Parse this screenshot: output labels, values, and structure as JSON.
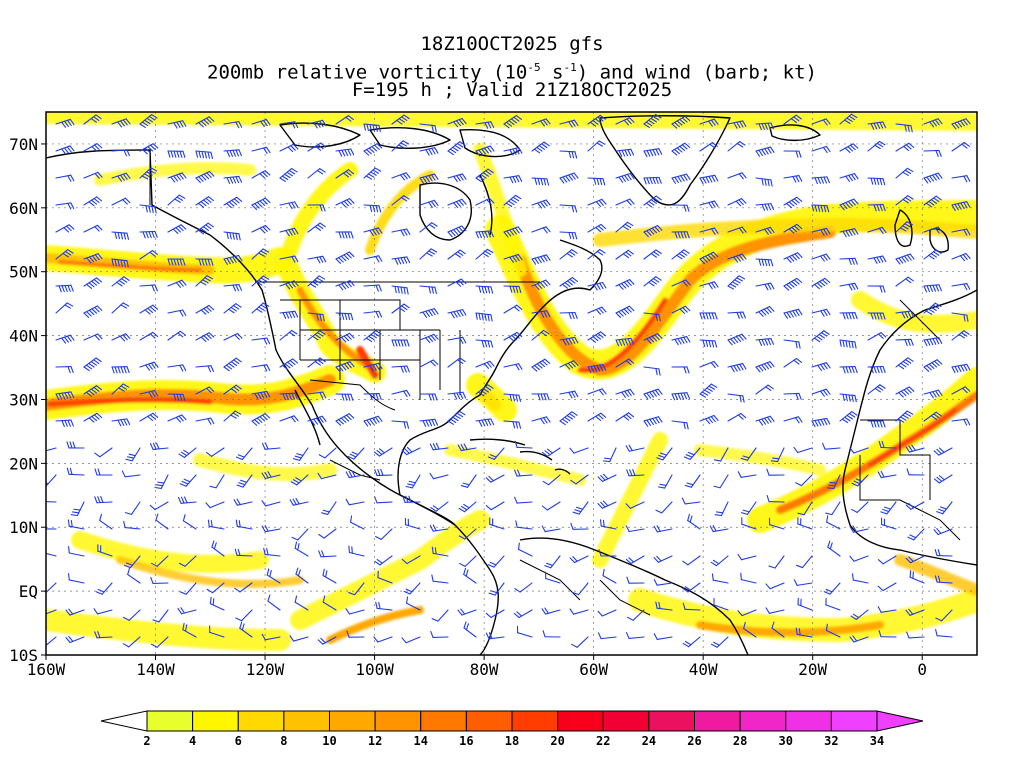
{
  "header": {
    "line1": "18Z10OCT2025 gfs",
    "line2_pre": "200mb relative vorticity (10",
    "line2_exp1": "-5",
    "line2_mid": " s",
    "line2_exp2": "-1",
    "line2_post": ") and wind (barb; kt)",
    "line3": "F=195 h ; Valid 21Z18OCT2025"
  },
  "axes": {
    "lat_labels": [
      "70N",
      "60N",
      "50N",
      "40N",
      "30N",
      "20N",
      "10N",
      "EQ",
      "10S"
    ],
    "lat_values": [
      70,
      60,
      50,
      40,
      30,
      20,
      10,
      0,
      -10
    ],
    "lon_labels": [
      "160W",
      "140W",
      "120W",
      "100W",
      "80W",
      "60W",
      "40W",
      "20W",
      "0"
    ],
    "lon_values": [
      -160,
      -140,
      -120,
      -100,
      -80,
      -60,
      -40,
      -20,
      0
    ],
    "lon_range": [
      -160,
      10
    ],
    "lat_range": [
      -10,
      75
    ]
  },
  "colorbar": {
    "labels": [
      "2",
      "4",
      "6",
      "8",
      "10",
      "12",
      "14",
      "16",
      "18",
      "20",
      "22",
      "24",
      "26",
      "28",
      "30",
      "32",
      "34"
    ],
    "colors": [
      "#ffffff",
      "#e8ff2e",
      "#fff600",
      "#ffd900",
      "#ffc100",
      "#ffa800",
      "#ff9300",
      "#ff7900",
      "#ff5e00",
      "#ff3d00",
      "#f8001c",
      "#f20034",
      "#ec1060",
      "#f01aa0",
      "#f026c8",
      "#f030e6",
      "#f040ff"
    ]
  },
  "colors": {
    "barb": "#1f3ce6",
    "coast": "#000000",
    "grid": "#777777"
  }
}
